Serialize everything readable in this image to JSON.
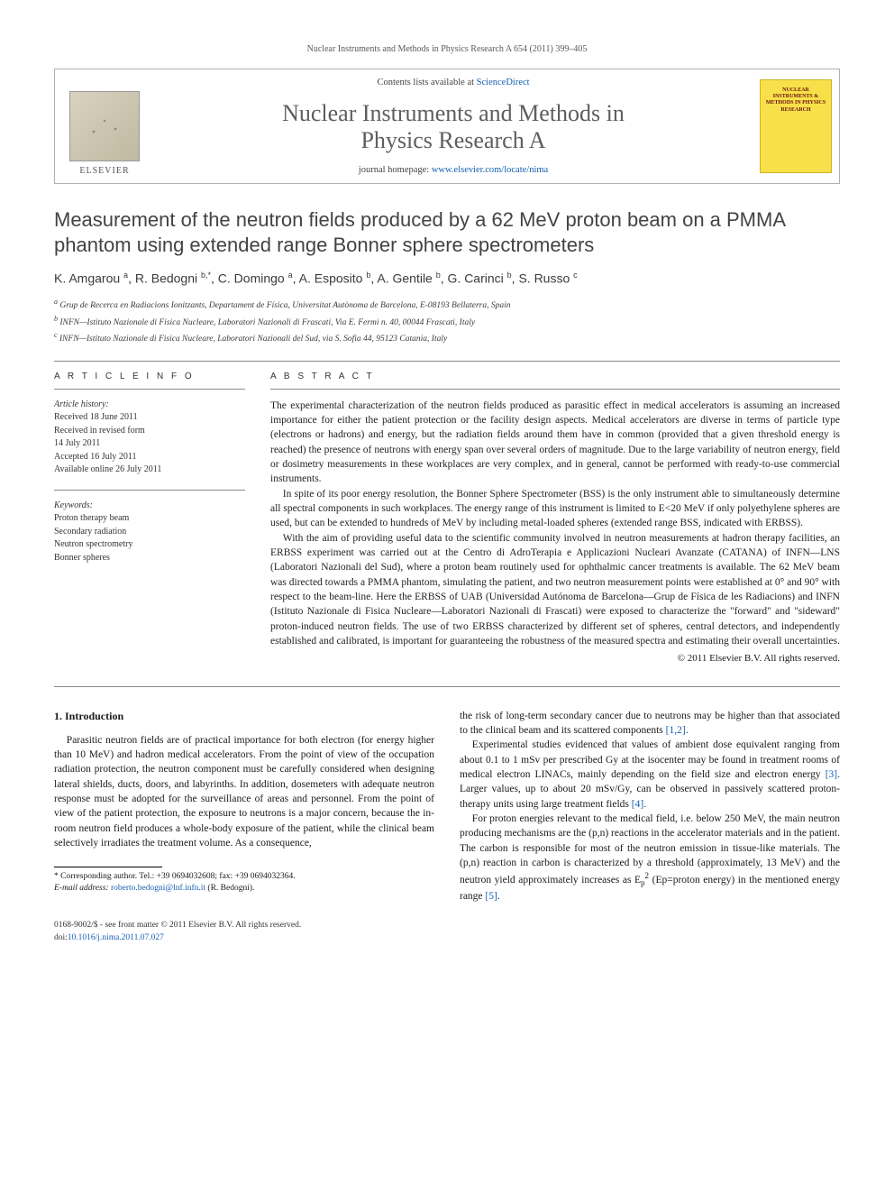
{
  "running_head": "Nuclear Instruments and Methods in Physics Research A 654 (2011) 399–405",
  "masthead": {
    "contents_prefix": "Contents lists available at ",
    "contents_link": "ScienceDirect",
    "journal_line1": "Nuclear Instruments and Methods in",
    "journal_line2": "Physics Research A",
    "homepage_prefix": "journal homepage: ",
    "homepage_link": "www.elsevier.com/locate/nima",
    "publisher": "ELSEVIER",
    "cover_text": "NUCLEAR INSTRUMENTS & METHODS IN PHYSICS RESEARCH"
  },
  "title": "Measurement of the neutron fields produced by a 62 MeV proton beam on a PMMA phantom using extended range Bonner sphere spectrometers",
  "authors_html": "K. Amgarou <sup>a</sup>, R. Bedogni <sup>b,*</sup>, C. Domingo <sup>a</sup>, A. Esposito <sup>b</sup>, A. Gentile <sup>b</sup>, G. Carinci <sup>b</sup>, S. Russo <sup>c</sup>",
  "affiliations": [
    "a Grup de Recerca en Radiacions Ionitzants, Departament de Física, Universitat Autònoma de Barcelona, E-08193 Bellaterra, Spain",
    "b INFN—Istituto Nazionale di Fisica Nucleare, Laboratori Nazionali di Frascati, Via E. Fermi n. 40, 00044 Frascati, Italy",
    "c INFN—Istituto Nazionale di Fisica Nucleare, Laboratori Nazionali del Sud, via S. Sofia 44, 95123 Catania, Italy"
  ],
  "info_label": "A R T I C L E   I N F O",
  "abstract_label": "A B S T R A C T",
  "history": {
    "heading": "Article history:",
    "received": "Received 18 June 2011",
    "revised1": "Received in revised form",
    "revised2": "14 July 2011",
    "accepted": "Accepted 16 July 2011",
    "online": "Available online 26 July 2011"
  },
  "keywords": {
    "heading": "Keywords:",
    "items": [
      "Proton therapy beam",
      "Secondary radiation",
      "Neutron spectrometry",
      "Bonner spheres"
    ]
  },
  "abstract_paras": [
    "The experimental characterization of the neutron fields produced as parasitic effect in medical accelerators is assuming an increased importance for either the patient protection or the facility design aspects. Medical accelerators are diverse in terms of particle type (electrons or hadrons) and energy, but the radiation fields around them have in common (provided that a given threshold energy is reached) the presence of neutrons with energy span over several orders of magnitude. Due to the large variability of neutron energy, field or dosimetry measurements in these workplaces are very complex, and in general, cannot be performed with ready-to-use commercial instruments.",
    "In spite of its poor energy resolution, the Bonner Sphere Spectrometer (BSS) is the only instrument able to simultaneously determine all spectral components in such workplaces. The energy range of this instrument is limited to E<20 MeV if only polyethylene spheres are used, but can be extended to hundreds of MeV by including metal-loaded spheres (extended range BSS, indicated with ERBSS).",
    "With the aim of providing useful data to the scientific community involved in neutron measurements at hadron therapy facilities, an ERBSS experiment was carried out at the Centro di AdroTerapia e Applicazioni Nucleari Avanzate (CATANA) of INFN—LNS (Laboratori Nazionali del Sud), where a proton beam routinely used for ophthalmic cancer treatments is available. The 62 MeV beam was directed towards a PMMA phantom, simulating the patient, and two neutron measurement points were established at 0° and 90° with respect to the beam-line. Here the ERBSS of UAB (Universidad Autónoma de Barcelona—Grup de Física de les Radiacions) and INFN (Istituto Nazionale di Fisica Nucleare—Laboratori Nazionali di Frascati) were exposed to characterize the \"forward\" and \"sideward\" proton-induced neutron fields. The use of two ERBSS characterized by different set of spheres, central detectors, and independently established and calibrated, is important for guaranteeing the robustness of the measured spectra and estimating their overall uncertainties."
  ],
  "copyright": "© 2011 Elsevier B.V. All rights reserved.",
  "section1": {
    "heading": "1.  Introduction",
    "p1": "Parasitic neutron fields are of practical importance for both electron (for energy higher than 10 MeV) and hadron medical accelerators. From the point of view of the occupation radiation protection, the neutron component must be carefully considered when designing lateral shields, ducts, doors, and labyrinths. In addition, dosemeters with adequate neutron response must be adopted for the surveillance of areas and personnel. From the point of view of the patient protection, the exposure to neutrons is a major concern, because the in-room neutron field produces a whole-body exposure of the patient, while the clinical beam selectively irradiates the treatment volume. As a consequence,",
    "p2a": "the risk of long-term secondary cancer due to neutrons may be higher than that associated to the clinical beam and its scattered components ",
    "p2b": ".",
    "p3a": "Experimental studies evidenced that values of ambient dose equivalent ranging from about 0.1 to 1 mSv per prescribed Gy at the isocenter may be found in treatment rooms of medical electron LINACs, mainly depending on the field size and electron energy ",
    "p3b": ". Larger values, up to about 20 mSv/Gy, can be observed in passively scattered proton-therapy units using large treatment fields ",
    "p3c": ".",
    "p4a": "For proton energies relevant to the medical field, i.e. below 250 MeV, the main neutron producing mechanisms are the (p,n) reactions in the accelerator materials and in the patient. The carbon is responsible for most of the neutron emission in tissue-like materials. The (p,n) reaction in carbon is characterized by a threshold (approximately, 13 MeV) and the neutron yield approximately increases as E",
    "p4b": "(Ep=proton energy) in the mentioned energy range ",
    "p4c": "."
  },
  "refs": {
    "r12": "[1,2]",
    "r3": "[3]",
    "r4": "[4]",
    "r5": "[5]"
  },
  "corresp": {
    "star": "* Corresponding author. Tel.: +39 0694032608; fax: +39 0694032364.",
    "email_label": "E-mail address:",
    "email": "roberto.bedogni@lnf.infn.it",
    "email_who": "(R. Bedogni)."
  },
  "footer": {
    "left1": "0168-9002/$ - see front matter © 2011 Elsevier B.V. All rights reserved.",
    "left2_prefix": "doi:",
    "left2_link": "10.1016/j.nima.2011.07.027"
  },
  "colors": {
    "link": "#1560b3",
    "heading_gray": "#5e5e5e",
    "cover_bg": "#f7e04a"
  }
}
